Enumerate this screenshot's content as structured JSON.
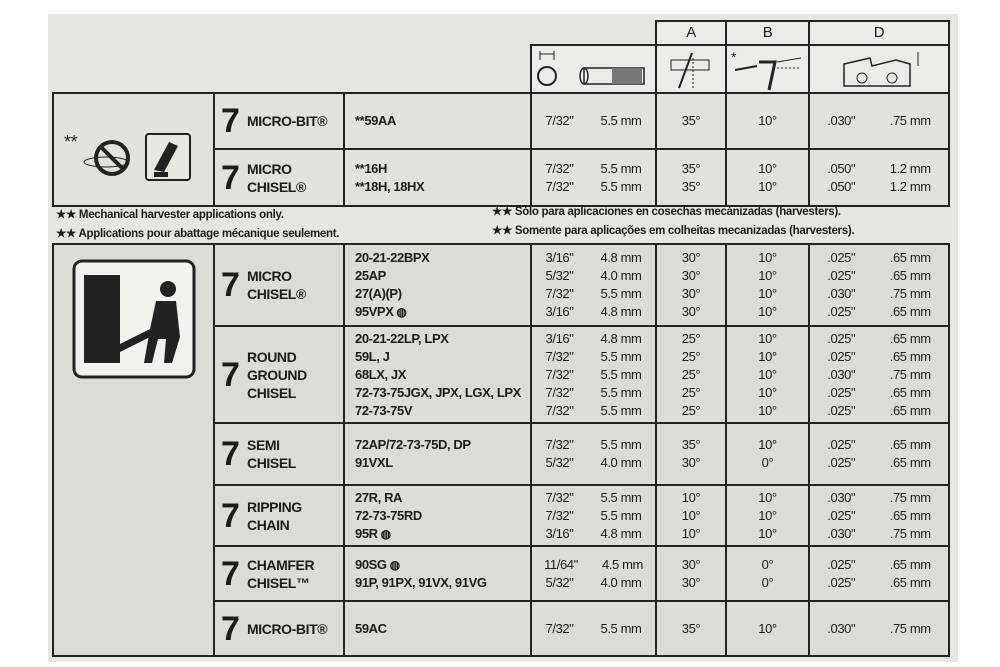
{
  "header": {
    "col_a": "A",
    "col_b": "B",
    "col_d": "D"
  },
  "icons": {
    "file_gauge": "file-diameter-icon",
    "angle_a": "top-plate-angle-icon",
    "angle_b": "depth-gauge-angle-icon",
    "depth_d": "depth-gauge-setting-icon",
    "harvester": "no-chainsaw-harvester-icon",
    "operator": "chainsaw-operator-icon",
    "low_kickback": "low-kickback-symbol"
  },
  "asterisk_b": "*",
  "harvester_mark": "**",
  "top_rows": [
    {
      "type": [
        "MICRO-BIT®"
      ],
      "entries": [
        {
          "model": "**59AA",
          "inch": "7/32\"",
          "mm": "5.5 mm",
          "a": "35°",
          "b": "10°",
          "d_in": ".030\"",
          "d_mm": ".75 mm"
        }
      ]
    },
    {
      "type": [
        "MICRO",
        "CHISEL®"
      ],
      "entries": [
        {
          "model": "**16H",
          "inch": "7/32\"",
          "mm": "5.5 mm",
          "a": "35°",
          "b": "10°",
          "d_in": ".050\"",
          "d_mm": "1.2 mm"
        },
        {
          "model": "**18H, 18HX",
          "inch": "7/32\"",
          "mm": "5.5 mm",
          "a": "35°",
          "b": "10°",
          "d_in": ".050\"",
          "d_mm": "1.2 mm"
        }
      ]
    }
  ],
  "notes": {
    "en": "★★ Mechanical harvester applications only.",
    "fr": "★★ Applications pour abattage mécanique seulement.",
    "es": "★★ Sólo para aplicaciones en cosechas mecánizadas (harvesters).",
    "pt": "★★ Somente para aplicações em colheitas mecanizadas (harvesters)."
  },
  "lower_rows": [
    {
      "type": [
        "MICRO",
        "CHISEL®"
      ],
      "entries": [
        {
          "model": "20-21-22BPX",
          "inch": "3/16\"",
          "mm": "4.8 mm",
          "a": "30°",
          "b": "10°",
          "d_in": ".025\"",
          "d_mm": ".65 mm"
        },
        {
          "model": "25AP",
          "inch": "5/32\"",
          "mm": "4.0 mm",
          "a": "30°",
          "b": "10°",
          "d_in": ".025\"",
          "d_mm": ".65 mm"
        },
        {
          "model": "27(A)(P)",
          "inch": "7/32\"",
          "mm": "5.5 mm",
          "a": "30°",
          "b": "10°",
          "d_in": ".030\"",
          "d_mm": ".75 mm"
        },
        {
          "model": "95VPX",
          "lk": true,
          "inch": "3/16\"",
          "mm": "4.8 mm",
          "a": "30°",
          "b": "10°",
          "d_in": ".025\"",
          "d_mm": ".65 mm"
        }
      ]
    },
    {
      "type": [
        "ROUND",
        "GROUND",
        "CHISEL"
      ],
      "entries": [
        {
          "model": "20-21-22LP, LPX",
          "inch": "3/16\"",
          "mm": "4.8 mm",
          "a": "25°",
          "b": "10°",
          "d_in": ".025\"",
          "d_mm": ".65 mm"
        },
        {
          "model": "59L, J",
          "inch": "7/32\"",
          "mm": "5.5 mm",
          "a": "25°",
          "b": "10°",
          "d_in": ".025\"",
          "d_mm": ".65 mm"
        },
        {
          "model": "68LX, JX",
          "inch": "7/32\"",
          "mm": "5.5 mm",
          "a": "25°",
          "b": "10°",
          "d_in": ".030\"",
          "d_mm": ".75 mm"
        },
        {
          "model": "72-73-75JGX, JPX, LGX, LPX",
          "inch": "7/32\"",
          "mm": "5.5 mm",
          "a": "25°",
          "b": "10°",
          "d_in": ".025\"",
          "d_mm": ".65 mm"
        },
        {
          "model": "72-73-75V",
          "inch": "7/32\"",
          "mm": "5.5 mm",
          "a": "25°",
          "b": "10°",
          "d_in": ".025\"",
          "d_mm": ".65 mm"
        }
      ]
    },
    {
      "type": [
        "SEMI",
        "CHISEL"
      ],
      "entries": [
        {
          "model": "72AP/72-73-75D, DP",
          "inch": "7/32\"",
          "mm": "5.5 mm",
          "a": "35°",
          "b": "10°",
          "d_in": ".025\"",
          "d_mm": ".65 mm"
        },
        {
          "model": "91VXL",
          "inch": "5/32\"",
          "mm": "4.0 mm",
          "a": "30°",
          "b": "0°",
          "d_in": ".025\"",
          "d_mm": ".65 mm"
        }
      ]
    },
    {
      "type": [
        "RIPPING",
        "CHAIN"
      ],
      "entries": [
        {
          "model": "27R, RA",
          "inch": "7/32\"",
          "mm": "5.5 mm",
          "a": "10°",
          "b": "10°",
          "d_in": ".030\"",
          "d_mm": ".75 mm"
        },
        {
          "model": "72-73-75RD",
          "inch": "7/32\"",
          "mm": "5.5 mm",
          "a": "10°",
          "b": "10°",
          "d_in": ".025\"",
          "d_mm": ".65 mm"
        },
        {
          "model": "95R",
          "lk": true,
          "inch": "3/16\"",
          "mm": "4.8 mm",
          "a": "10°",
          "b": "10°",
          "d_in": ".030\"",
          "d_mm": ".75 mm"
        }
      ]
    },
    {
      "type": [
        "CHAMFER",
        "CHISEL™"
      ],
      "entries": [
        {
          "model": "90SG",
          "lk": true,
          "inch": "11/64\"",
          "mm": "4.5 mm",
          "a": "30°",
          "b": "0°",
          "d_in": ".025\"",
          "d_mm": ".65 mm"
        },
        {
          "model": "91P, 91PX, 91VX, 91VG",
          "inch": "5/32\"",
          "mm": "4.0 mm",
          "a": "30°",
          "b": "0°",
          "d_in": ".025\"",
          "d_mm": ".65 mm"
        }
      ]
    },
    {
      "type": [
        "MICRO-BIT®"
      ],
      "entries": [
        {
          "model": "59AC",
          "inch": "7/32\"",
          "mm": "5.5 mm",
          "a": "35°",
          "b": "10°",
          "d_in": ".030\"",
          "d_mm": ".75 mm"
        }
      ]
    }
  ]
}
